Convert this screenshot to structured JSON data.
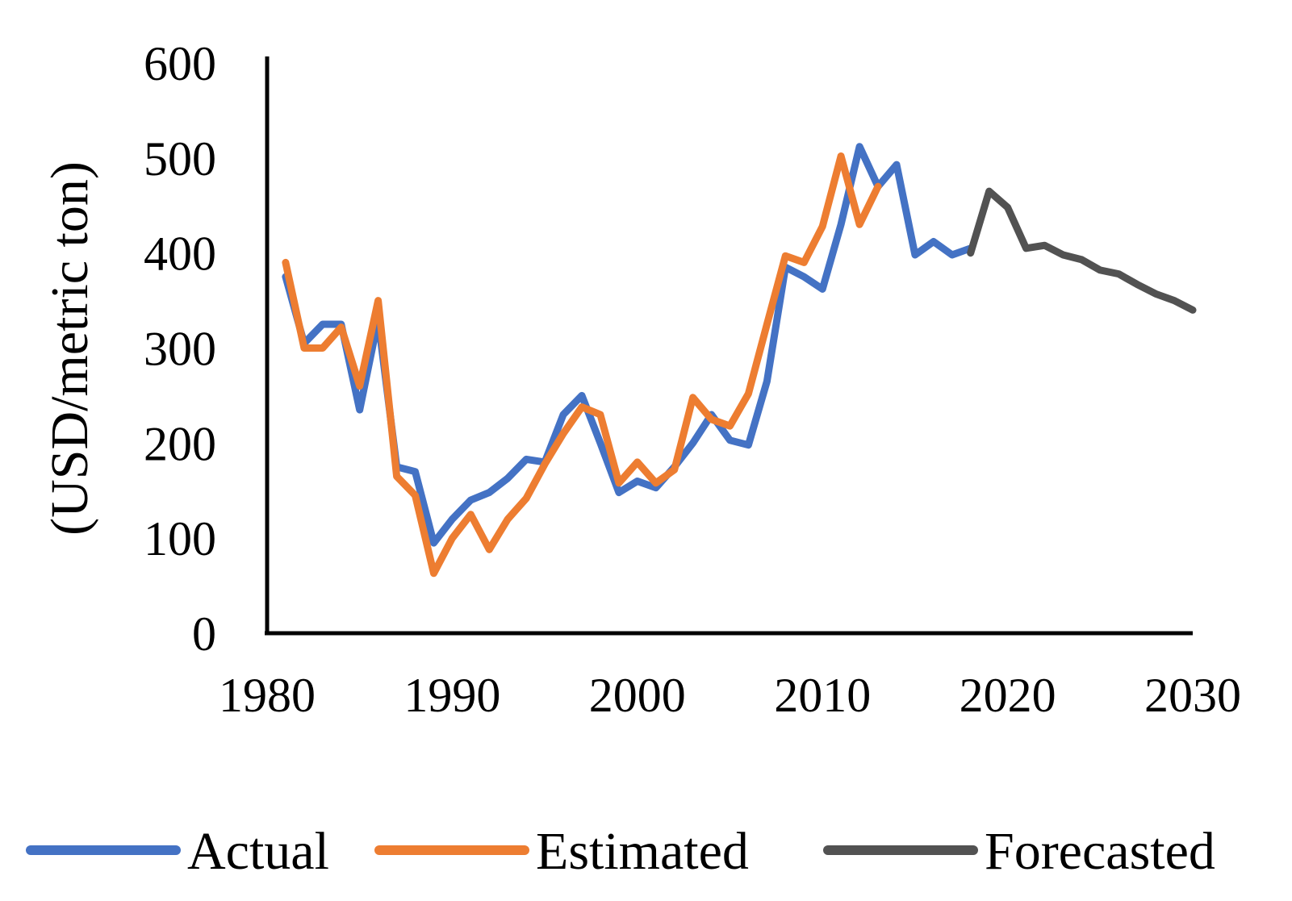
{
  "chart_data": {
    "type": "line",
    "title": "",
    "xlabel": "",
    "ylabel": "(USD/metric  ton)",
    "xlim": [
      1980,
      2030
    ],
    "ylim": [
      0,
      600
    ],
    "x_ticks": [
      1980,
      1990,
      2000,
      2010,
      2020,
      2030
    ],
    "y_ticks": [
      0,
      100,
      200,
      300,
      400,
      500,
      600
    ],
    "grid": false,
    "legend_position": "bottom",
    "series": [
      {
        "name": "Actual",
        "color": "#4472C4",
        "x": [
          1981,
          1982,
          1983,
          1984,
          1985,
          1986,
          1987,
          1988,
          1989,
          1990,
          1991,
          1992,
          1993,
          1994,
          1995,
          1996,
          1997,
          1998,
          1999,
          2000,
          2001,
          2002,
          2003,
          2004,
          2005,
          2006,
          2007,
          2008,
          2009,
          2010,
          2011,
          2012,
          2013,
          2014,
          2015,
          2016,
          2017,
          2018
        ],
        "values": [
          375,
          305,
          325,
          325,
          235,
          330,
          175,
          170,
          95,
          120,
          140,
          148,
          163,
          183,
          180,
          230,
          250,
          200,
          148,
          160,
          153,
          175,
          200,
          230,
          203,
          198,
          265,
          385,
          375,
          362,
          430,
          512,
          470,
          493,
          398,
          412,
          398,
          405
        ]
      },
      {
        "name": "Estimated",
        "color": "#ED7D31",
        "x": [
          1981,
          1982,
          1983,
          1984,
          1985,
          1986,
          1987,
          1988,
          1989,
          1990,
          1991,
          1992,
          1993,
          1994,
          1995,
          1996,
          1997,
          1998,
          1999,
          2000,
          2001,
          2002,
          2003,
          2004,
          2005,
          2006,
          2007,
          2008,
          2009,
          2010,
          2011,
          2012,
          2013
        ],
        "values": [
          390,
          300,
          300,
          322,
          260,
          350,
          165,
          145,
          63,
          100,
          125,
          88,
          120,
          142,
          178,
          210,
          238,
          230,
          158,
          180,
          158,
          172,
          248,
          225,
          218,
          252,
          325,
          397,
          390,
          428,
          502,
          430,
          470
        ]
      },
      {
        "name": "Forecasted",
        "color": "#525252",
        "x": [
          2018,
          2019,
          2020,
          2021,
          2022,
          2023,
          2024,
          2025,
          2026,
          2027,
          2028,
          2029,
          2030
        ],
        "values": [
          400,
          465,
          448,
          405,
          408,
          398,
          393,
          382,
          378,
          367,
          357,
          350,
          340
        ]
      }
    ]
  }
}
